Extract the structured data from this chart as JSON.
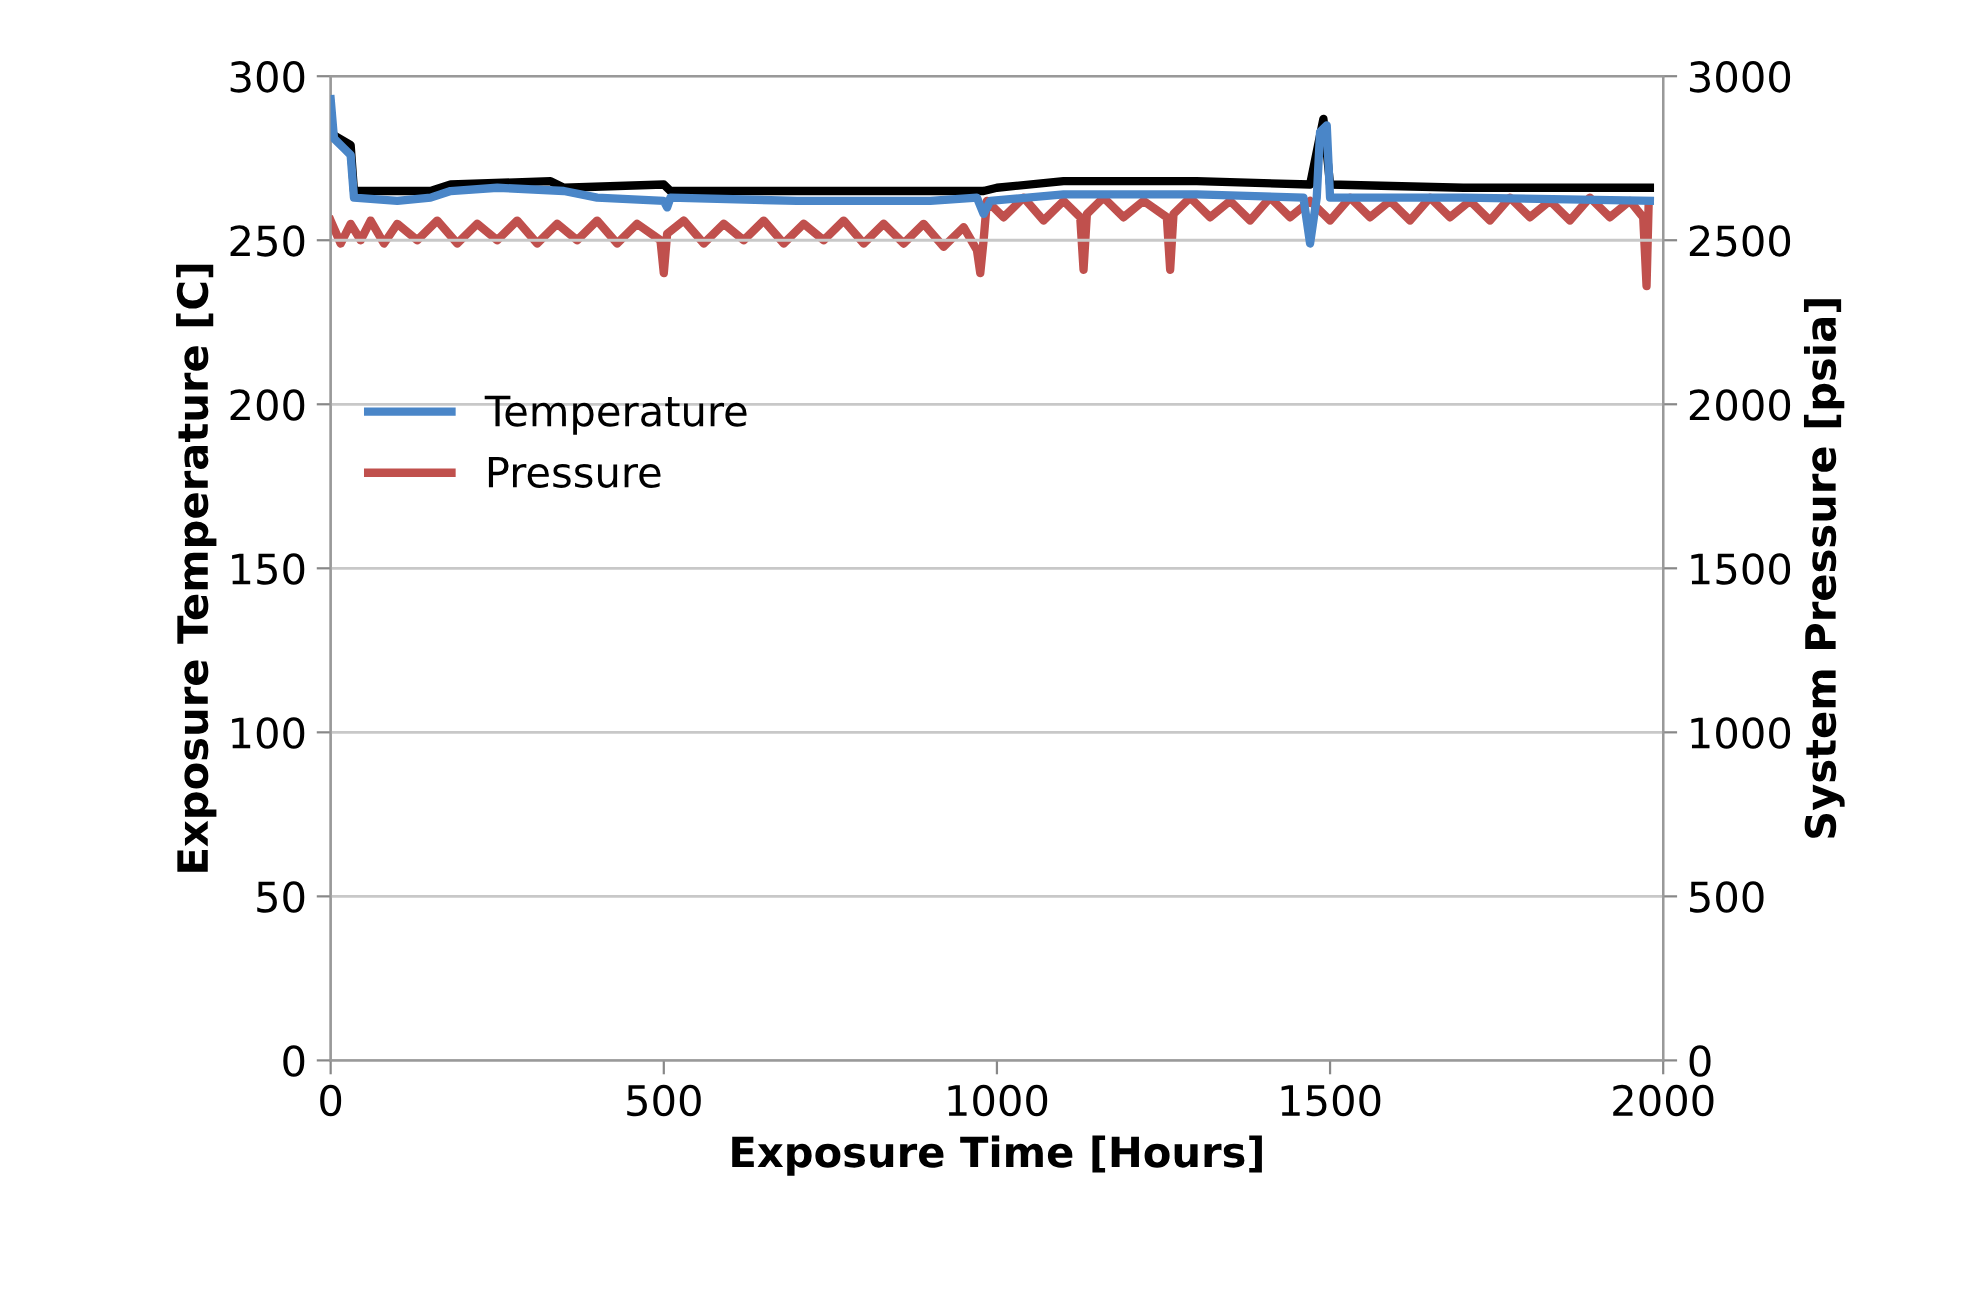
{
  "chart_data": {
    "type": "line",
    "xlabel": "Exposure Time [Hours]",
    "ylabel": "Exposure Temperature [C]",
    "y2label": "System Pressure [psia]",
    "xlim": [
      0,
      2000
    ],
    "xticks": [
      0,
      500,
      1000,
      1500,
      2000
    ],
    "ylim": [
      0,
      300
    ],
    "yticks": [
      0,
      50,
      100,
      150,
      200,
      250,
      300
    ],
    "y2lim": [
      0,
      3000
    ],
    "y2ticks": [
      0,
      500,
      1000,
      1500,
      2000,
      2500,
      3000
    ],
    "grid": "y",
    "legend": "center left",
    "marker": "none",
    "line_style": "solid",
    "series": [
      {
        "color": "#000000",
        "x": [
          5,
          30,
          35,
          150,
          180,
          330,
          350,
          500,
          510,
          980,
          1000,
          1100,
          1300,
          1470,
          1490,
          1500,
          1700,
          1980
        ],
        "values": [
          282,
          279,
          265,
          265,
          267,
          268,
          266,
          267,
          265,
          265,
          266,
          268,
          268,
          267,
          287,
          267,
          266,
          266
        ]
      },
      {
        "name": "Temperature",
        "color": "#4a86c8",
        "x": [
          0,
          5,
          20,
          30,
          35,
          100,
          150,
          180,
          250,
          350,
          400,
          500,
          505,
          510,
          700,
          900,
          970,
          980,
          990,
          1100,
          1300,
          1460,
          1470,
          1480,
          1485,
          1495,
          1500,
          1700,
          1980
        ],
        "values": [
          293,
          281,
          278,
          276,
          263,
          262,
          263,
          265,
          266,
          265,
          263,
          262,
          260,
          263,
          262,
          262,
          263,
          258,
          262,
          264,
          264,
          263,
          249,
          263,
          283,
          285,
          263,
          263,
          262
        ]
      },
      {
        "name": "Pressure",
        "color": "#c0504d",
        "axis": "y2",
        "x": [
          0,
          15,
          30,
          45,
          60,
          80,
          100,
          130,
          160,
          190,
          220,
          250,
          280,
          310,
          340,
          370,
          400,
          430,
          460,
          495,
          500,
          505,
          530,
          560,
          590,
          620,
          650,
          680,
          710,
          740,
          770,
          800,
          830,
          860,
          890,
          920,
          950,
          970,
          975,
          980,
          985,
          1010,
          1040,
          1070,
          1100,
          1125,
          1130,
          1135,
          1160,
          1190,
          1220,
          1255,
          1260,
          1265,
          1290,
          1320,
          1350,
          1380,
          1410,
          1440,
          1470,
          1500,
          1530,
          1560,
          1590,
          1620,
          1650,
          1680,
          1710,
          1740,
          1770,
          1800,
          1830,
          1860,
          1890,
          1920,
          1950,
          1970,
          1975,
          1978
        ],
        "values": [
          2560,
          2490,
          2550,
          2500,
          2560,
          2490,
          2550,
          2500,
          2560,
          2490,
          2550,
          2500,
          2560,
          2490,
          2550,
          2500,
          2560,
          2490,
          2550,
          2500,
          2400,
          2520,
          2560,
          2490,
          2550,
          2500,
          2560,
          2490,
          2550,
          2500,
          2560,
          2490,
          2550,
          2490,
          2550,
          2480,
          2540,
          2470,
          2400,
          2500,
          2620,
          2570,
          2630,
          2560,
          2620,
          2570,
          2410,
          2580,
          2630,
          2570,
          2620,
          2570,
          2410,
          2580,
          2630,
          2570,
          2620,
          2560,
          2630,
          2570,
          2620,
          2560,
          2630,
          2570,
          2620,
          2560,
          2630,
          2570,
          2620,
          2560,
          2630,
          2570,
          2620,
          2560,
          2630,
          2570,
          2620,
          2570,
          2360,
          2600
        ]
      }
    ]
  }
}
